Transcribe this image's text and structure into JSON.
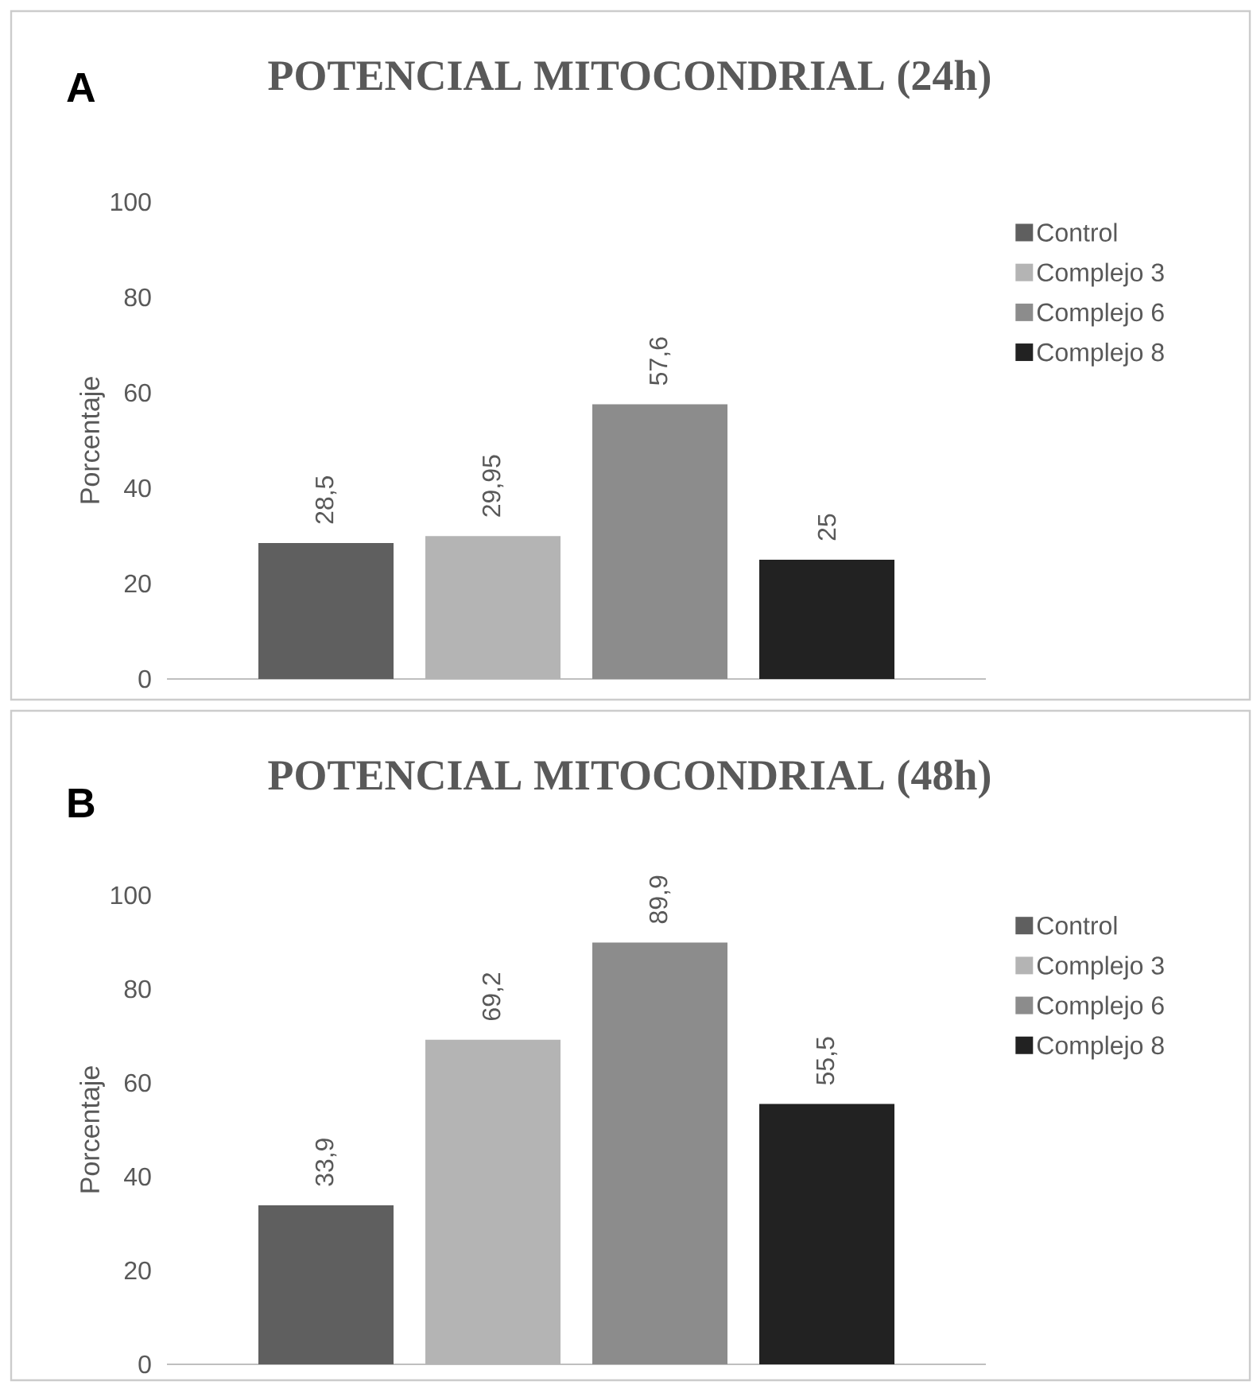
{
  "chart_data": [
    {
      "type": "bar",
      "title": "POTENCIAL MITOCONDRIAL (24h)",
      "ylabel": "Porcentaje",
      "categories": [
        null
      ],
      "annotations": [
        "A"
      ],
      "legend": "right",
      "ylim": [
        0,
        100
      ],
      "yticks": [
        0,
        20,
        40,
        60,
        80,
        100
      ],
      "series": [
        {
          "name": "Control",
          "color": "#5f5f5f",
          "values": [
            28.5
          ],
          "value_labels": [
            "28,5"
          ]
        },
        {
          "name": "Complejo 3",
          "color": "#b4b4b4",
          "values": [
            29.95
          ],
          "value_labels": [
            "29,95"
          ]
        },
        {
          "name": "Complejo 6",
          "color": "#8c8c8c",
          "values": [
            57.6
          ],
          "value_labels": [
            "57,6"
          ]
        },
        {
          "name": "Complejo 8",
          "color": "#222222",
          "values": [
            25
          ],
          "value_labels": [
            "25"
          ]
        }
      ]
    },
    {
      "type": "bar",
      "title": "POTENCIAL MITOCONDRIAL (48h)",
      "ylabel": "Porcentaje",
      "categories": [
        null
      ],
      "annotations": [
        "B"
      ],
      "legend": "right",
      "ylim": [
        0,
        100
      ],
      "yticks": [
        0,
        20,
        40,
        60,
        80,
        100
      ],
      "series": [
        {
          "name": "Control",
          "color": "#5f5f5f",
          "values": [
            33.9
          ],
          "value_labels": [
            "33,9"
          ]
        },
        {
          "name": "Complejo 3",
          "color": "#b4b4b4",
          "values": [
            69.2
          ],
          "value_labels": [
            "69,2"
          ]
        },
        {
          "name": "Complejo 6",
          "color": "#8c8c8c",
          "values": [
            89.9
          ],
          "value_labels": [
            "89,9"
          ]
        },
        {
          "name": "Complejo 8",
          "color": "#222222",
          "values": [
            55.5
          ],
          "value_labels": [
            "55,5"
          ]
        }
      ]
    }
  ]
}
